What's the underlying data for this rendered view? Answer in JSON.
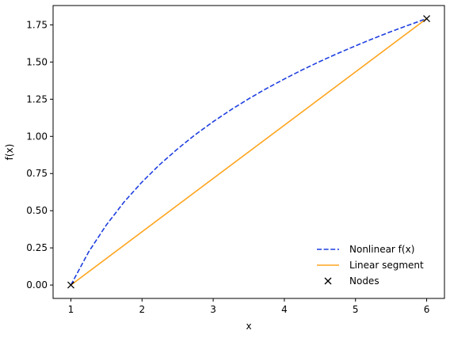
{
  "chart_data": {
    "type": "line",
    "title": "",
    "xlabel": "x",
    "ylabel": "f(x)",
    "xlim": [
      0.75,
      6.25
    ],
    "ylim": [
      -0.09,
      1.88
    ],
    "xticks": [
      1,
      2,
      3,
      4,
      5,
      6
    ],
    "yticks": [
      0.0,
      0.25,
      0.5,
      0.75,
      1.0,
      1.25,
      1.5,
      1.75
    ],
    "ytick_labels": [
      "0.00",
      "0.25",
      "0.50",
      "0.75",
      "1.00",
      "1.25",
      "1.50",
      "1.75"
    ],
    "xtick_labels": [
      "1",
      "2",
      "3",
      "4",
      "5",
      "6"
    ],
    "grid": false,
    "legend_position": "bottom-right",
    "series": [
      {
        "name": "Nonlinear f(x)",
        "style": "dashed",
        "color": "#1f3fe0",
        "x": [
          1.0,
          1.25,
          1.5,
          1.75,
          2.0,
          2.25,
          2.5,
          2.75,
          3.0,
          3.25,
          3.5,
          3.75,
          4.0,
          4.25,
          4.5,
          4.75,
          5.0,
          5.25,
          5.5,
          5.75,
          6.0
        ],
        "y": [
          0.0,
          0.223,
          0.405,
          0.56,
          0.693,
          0.811,
          0.916,
          1.012,
          1.099,
          1.179,
          1.253,
          1.322,
          1.386,
          1.447,
          1.504,
          1.558,
          1.609,
          1.658,
          1.705,
          1.749,
          1.792
        ]
      },
      {
        "name": "Linear segment",
        "style": "solid",
        "color": "#ffa51f",
        "x": [
          1,
          6
        ],
        "y": [
          0.0,
          1.792
        ]
      },
      {
        "name": "Nodes",
        "style": "markers",
        "marker": "x",
        "color": "#000000",
        "x": [
          1,
          6
        ],
        "y": [
          0.0,
          1.792
        ]
      }
    ]
  }
}
